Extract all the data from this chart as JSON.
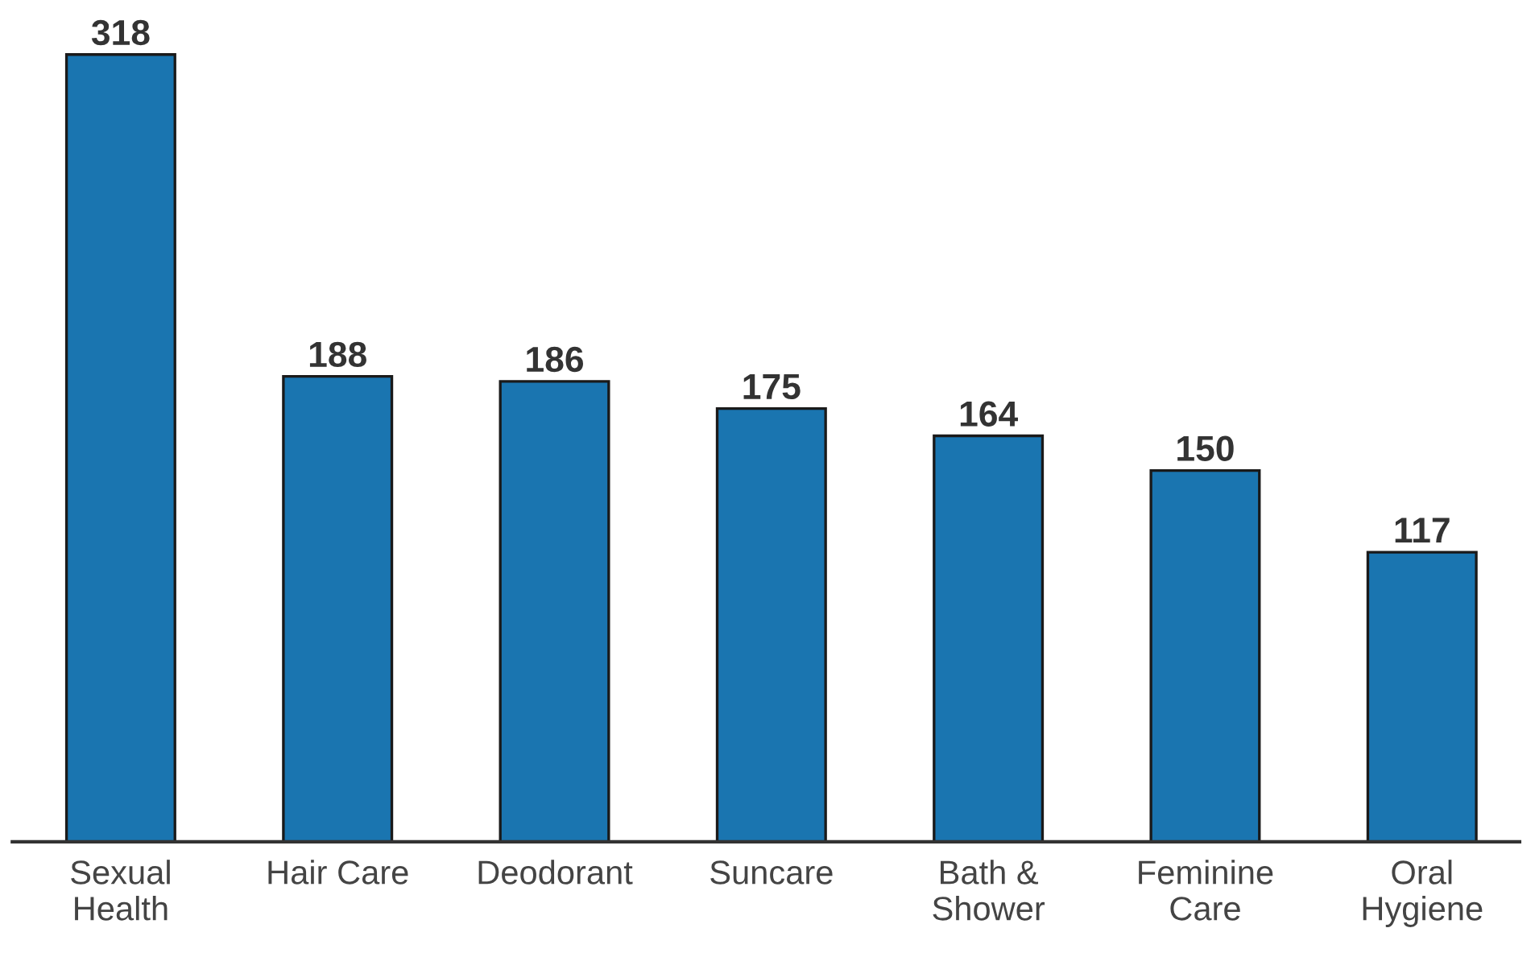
{
  "chart_data": {
    "type": "bar",
    "categories": [
      "Sexual\nHealth",
      "Hair Care",
      "Deodorant",
      "Suncare",
      "Bath &\nShower",
      "Feminine\nCare",
      "Oral\nHygiene"
    ],
    "values": [
      318,
      188,
      186,
      175,
      164,
      150,
      117
    ],
    "color": "#1a75b0",
    "data_labels": true,
    "grid": false,
    "legend": false
  }
}
